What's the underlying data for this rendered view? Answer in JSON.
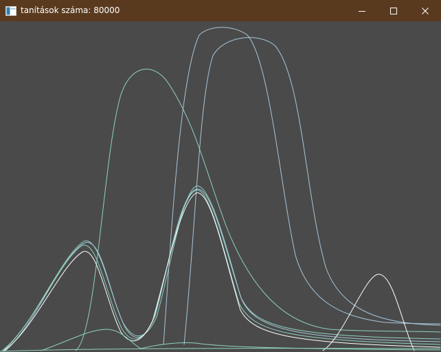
{
  "window": {
    "title": "tanítások száma: 80000",
    "app_icon": "window-app-icon",
    "controls": {
      "minimize_icon": "minimize-icon",
      "maximize_icon": "maximize-icon",
      "close_icon": "close-icon"
    },
    "colors": {
      "titlebar": "#5a3a1e",
      "canvas": "#4a4a4a"
    }
  },
  "plot": {
    "curve_colors": {
      "teal": "#8fd3bf",
      "blue": "#a8c8dc",
      "white": "#ffffff"
    }
  }
}
